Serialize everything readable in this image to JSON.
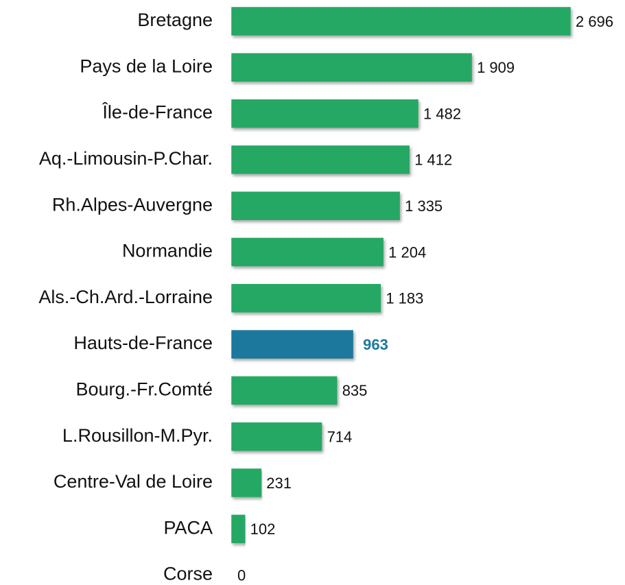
{
  "chart_data": {
    "type": "bar",
    "orientation": "horizontal",
    "categories": [
      "Bretagne",
      "Pays de la Loire",
      "Île-de-France",
      "Aq.-Limousin-P.Char.",
      "Rh.Alpes-Auvergne",
      "Normandie",
      "Als.-Ch.Ard.-Lorraine",
      "Hauts-de-France",
      "Bourg.-Fr.Comté",
      "L.Rousillon-M.Pyr.",
      "Centre-Val de Loire",
      "PACA",
      "Corse"
    ],
    "values": [
      2696,
      1909,
      1482,
      1412,
      1335,
      1204,
      1183,
      963,
      835,
      714,
      231,
      102,
      0
    ],
    "value_labels": [
      "2 696",
      "1 909",
      "1 482",
      "1 412",
      "1 335",
      "1 204",
      "1 183",
      "963",
      "835",
      "714",
      "231",
      "102",
      "0"
    ],
    "colors": [
      "#25a865",
      "#25a865",
      "#25a865",
      "#25a865",
      "#25a865",
      "#25a865",
      "#25a865",
      "#1f789c",
      "#25a865",
      "#25a865",
      "#25a865",
      "#25a865",
      "#25a865"
    ],
    "highlight": 7
  }
}
